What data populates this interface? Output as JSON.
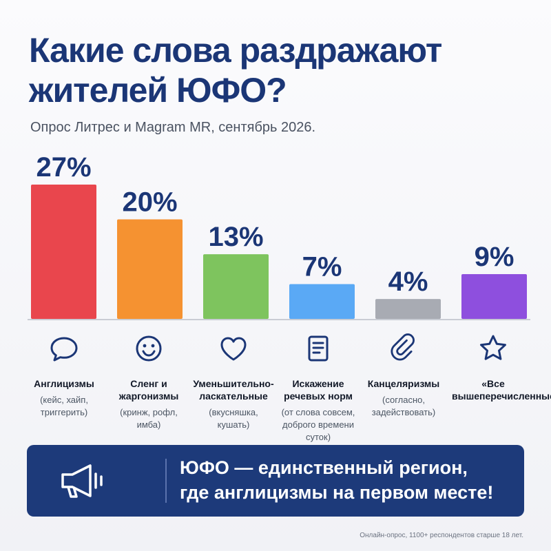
{
  "header": {
    "title_line1": "Какие слова раздражают",
    "title_line2": "жителей ЮФО?",
    "subtitle": "Опрос Литрес и Magram MR, сентябрь 2026."
  },
  "chart_data": {
    "type": "bar",
    "categories": [
      "Англицизмы",
      "Сленг и жаргонизмы",
      "Уменьшительно-ласкательные",
      "Искажение речевых норм",
      "Канцеляризмы",
      "«Все вышеперечисленные»"
    ],
    "values": [
      27,
      20,
      13,
      7,
      4,
      9
    ],
    "value_labels": [
      "27%",
      "20%",
      "13%",
      "7%",
      "4%",
      "9%"
    ],
    "colors": [
      "#e9464d",
      "#f59231",
      "#7ec45e",
      "#5aa9f5",
      "#a8abb3",
      "#8e4fde"
    ],
    "ylim": [
      0,
      27
    ],
    "unit": "%"
  },
  "categories_detail": [
    {
      "name_lines": [
        "Англицизмы"
      ],
      "examples_lines": [
        "(кейс, хайп,",
        "триггерить)"
      ],
      "icon": "speech-bubble-icon"
    },
    {
      "name_lines": [
        "Сленг и",
        "жаргонизмы"
      ],
      "examples_lines": [
        "(кринж, рофл,",
        "имба)"
      ],
      "icon": "smiley-icon"
    },
    {
      "name_lines": [
        "Уменьшительно-",
        "ласкательные"
      ],
      "examples_lines": [
        "(вкусняшка,",
        "кушать)"
      ],
      "icon": "heart-icon"
    },
    {
      "name_lines": [
        "Искажение",
        "речевых норм"
      ],
      "examples_lines": [
        "(от слова совсем,",
        "доброго времени",
        "суток)"
      ],
      "icon": "document-icon"
    },
    {
      "name_lines": [
        "Канцеляризмы"
      ],
      "examples_lines": [
        "(согласно,",
        "задействовать)"
      ],
      "icon": "paperclip-icon"
    },
    {
      "name_lines": [
        "«Все",
        "вышеперечисленные»"
      ],
      "examples_lines": [],
      "icon": "star-icon"
    }
  ],
  "banner": {
    "line1": "ЮФО — единственный регион,",
    "line2": "где англицизмы на первом месте!",
    "icon": "megaphone-icon"
  },
  "footnote": "Онлайн-опрос, 1100+ респондентов старше 18 лет."
}
